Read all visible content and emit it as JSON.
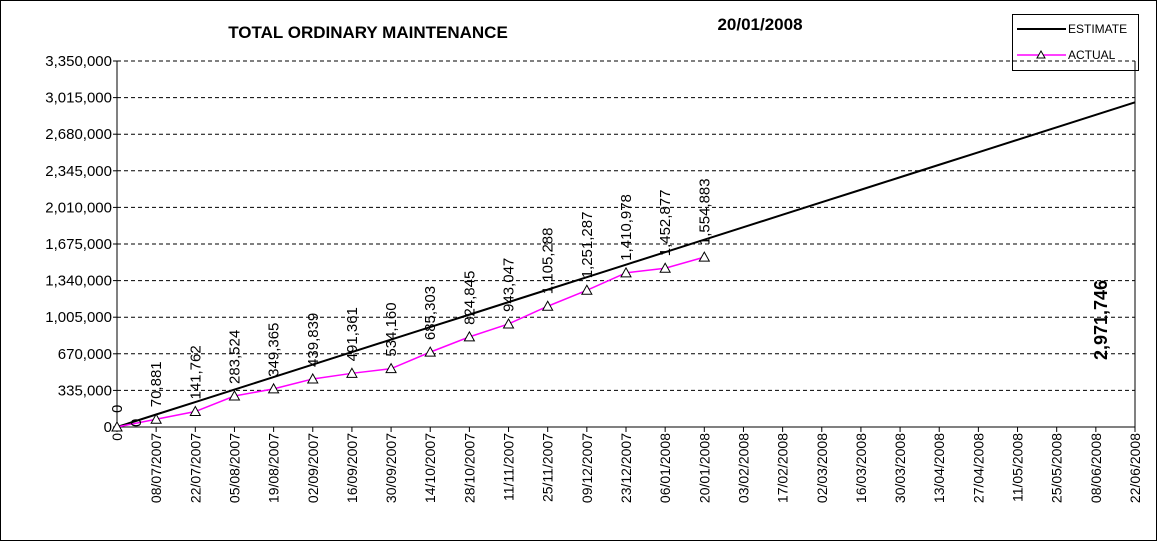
{
  "chart_data": {
    "type": "line",
    "title": "TOTAL ORDINARY MAINTENANCE",
    "subtitle": "20/01/2008",
    "categories": [
      "0",
      "08/07/2007",
      "22/07/2007",
      "05/08/2007",
      "19/08/2007",
      "02/09/2007",
      "16/09/2007",
      "30/09/2007",
      "14/10/2007",
      "28/10/2007",
      "11/11/2007",
      "25/11/2007",
      "09/12/2007",
      "23/12/2007",
      "06/01/2008",
      "20/01/2008",
      "03/02/2008",
      "17/02/2008",
      "02/03/2008",
      "16/03/2008",
      "30/03/2008",
      "13/04/2008",
      "27/04/2008",
      "11/05/2008",
      "25/05/2008",
      "08/06/2008",
      "22/06/2008"
    ],
    "series": [
      {
        "name": "ESTIMATE",
        "color": "#000000",
        "values": [
          0,
          114298,
          228596,
          342894,
          457192,
          571490,
          685788,
          800086,
          914384,
          1028682,
          1142980,
          1257278,
          1371576,
          1485874,
          1600172,
          1714470,
          1828768,
          1943066,
          2057364,
          2171662,
          2285960,
          2400258,
          2514556,
          2628854,
          2743152,
          2857450,
          2971746
        ],
        "value_labels": [
          "0",
          null,
          null,
          null,
          null,
          null,
          null,
          null,
          null,
          null,
          null,
          null,
          null,
          null,
          null,
          null,
          null,
          null,
          null,
          null,
          null,
          null,
          null,
          null,
          null,
          null,
          "2,971,746"
        ]
      },
      {
        "name": "ACTUAL",
        "color": "#ff00ff",
        "marker": "triangle",
        "values": [
          0,
          70881,
          141762,
          283524,
          349365,
          439839,
          491361,
          534160,
          685303,
          824845,
          943047,
          1105288,
          1251287,
          1410978,
          1452877,
          1554883,
          null,
          null,
          null,
          null,
          null,
          null,
          null,
          null,
          null,
          null,
          null
        ],
        "value_labels": [
          "0",
          "70,881",
          "141,762",
          "283,524",
          "349,365",
          "439,839",
          "491,361",
          "534,160",
          "685,303",
          "824,845",
          "943,047",
          "1,105,288",
          "1,251,287",
          "1,410,978",
          "1,452,877",
          "1,554,883",
          null,
          null,
          null,
          null,
          null,
          null,
          null,
          null,
          null,
          null,
          null
        ]
      }
    ],
    "ylim": [
      0,
      3350000
    ],
    "yticks": [
      {
        "value": 0,
        "label": "0"
      },
      {
        "value": 335000,
        "label": "335,000"
      },
      {
        "value": 670000,
        "label": "670,000"
      },
      {
        "value": 1005000,
        "label": "1,005,000"
      },
      {
        "value": 1340000,
        "label": "1,340,000"
      },
      {
        "value": 1675000,
        "label": "1,675,000"
      },
      {
        "value": 2010000,
        "label": "2,010,000"
      },
      {
        "value": 2345000,
        "label": "2,345,000"
      },
      {
        "value": 2680000,
        "label": "2,680,000"
      },
      {
        "value": 3015000,
        "label": "3,015,000"
      },
      {
        "value": 3350000,
        "label": "3,350,000"
      }
    ],
    "grid": true,
    "legend": "top-right"
  }
}
